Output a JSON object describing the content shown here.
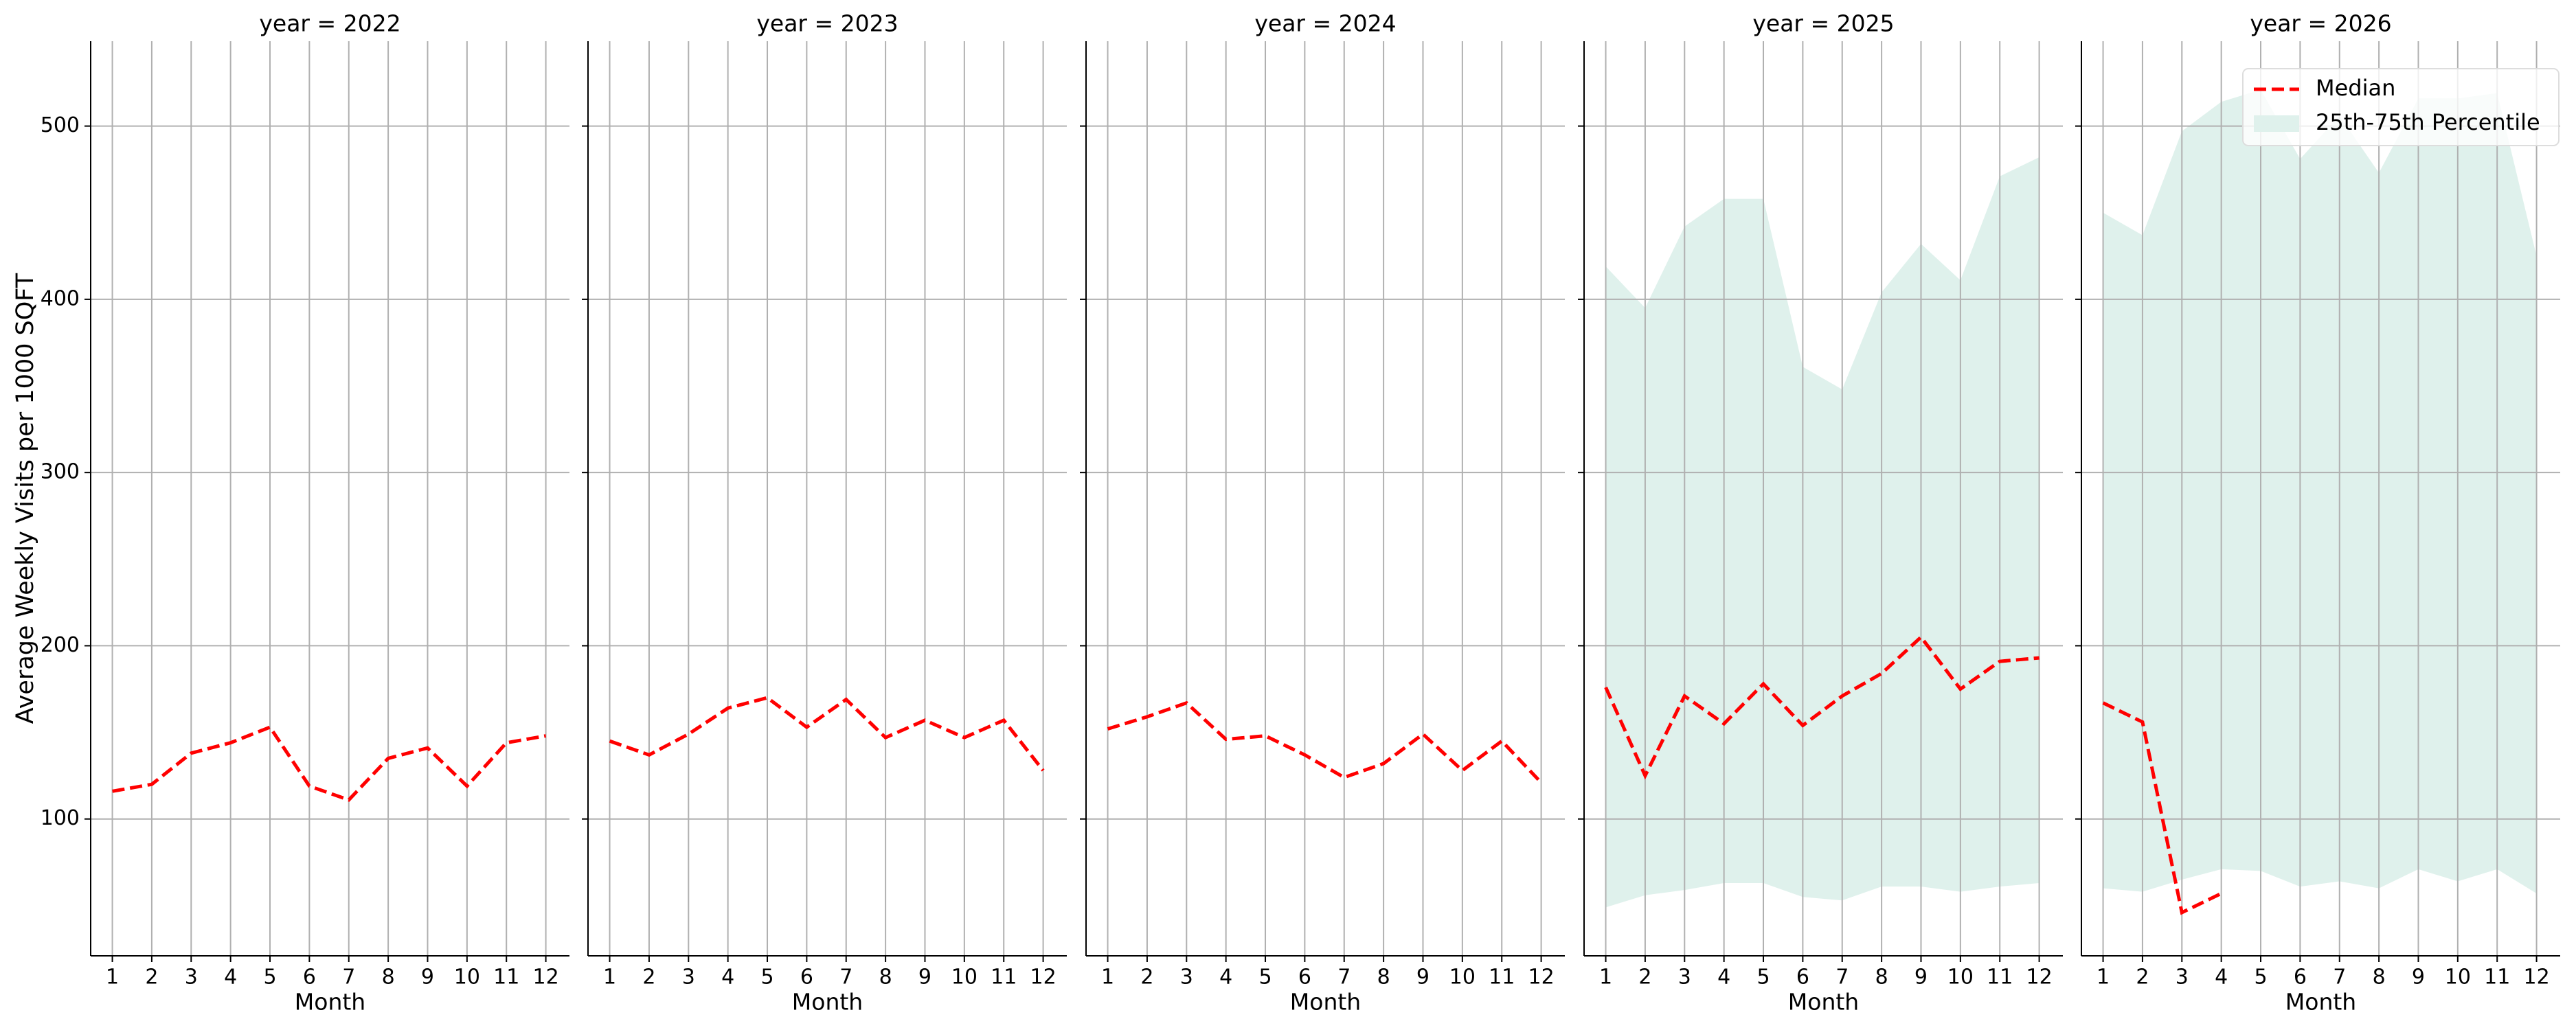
{
  "chart_data": {
    "type": "facet-line",
    "ylabel": "Average Weekly Visits per 1000 SQFT",
    "xlabel": "Month",
    "ylim": [
      21,
      549
    ],
    "yticks": [
      100,
      200,
      300,
      400,
      500
    ],
    "xlim": [
      0.45,
      12.6
    ],
    "grid": true,
    "legend": "upper right",
    "facets": [
      {
        "title": "year = 2022",
        "x": [
          1,
          2,
          3,
          4,
          5,
          6,
          7,
          8,
          9,
          10,
          11,
          12
        ],
        "series": [
          {
            "name": "Median",
            "color": "#ff0000",
            "values": [
              116,
              120,
              138,
              144,
              153,
              119,
              111,
              135,
              141,
              119,
              144,
              148
            ]
          }
        ]
      },
      {
        "title": "year = 2023",
        "x": [
          1,
          2,
          3,
          4,
          5,
          6,
          7,
          8,
          9,
          10,
          11,
          12
        ],
        "series": [
          {
            "name": "Median",
            "color": "#ff0000",
            "values": [
              145,
              137,
              149,
              164,
              170,
              153,
              169,
              147,
              157,
              147,
              157,
              128
            ]
          }
        ]
      },
      {
        "title": "year = 2024",
        "x": [
          1,
          2,
          3,
          4,
          5,
          6,
          7,
          8,
          9,
          10,
          11,
          12
        ],
        "series": [
          {
            "name": "Median",
            "color": "#ff0000",
            "values": [
              152,
              159,
              167,
              146,
              148,
              137,
              124,
              132,
              149,
              128,
              145,
              121
            ]
          }
        ]
      },
      {
        "title": "year = 2025",
        "x": [
          1,
          2,
          3,
          4,
          5,
          6,
          7,
          8,
          9,
          10,
          11,
          12
        ],
        "series": [
          {
            "name": "Median",
            "color": "#ff0000",
            "values": [
              176,
              125,
              171,
              155,
              178,
              154,
              171,
              184,
              205,
              175,
              191,
              193
            ]
          },
          {
            "name": "25th-75th Percentile",
            "color": "#dff1ec",
            "lower": [
              49,
              56,
              59,
              63,
              63,
              55,
              53,
              61,
              61,
              58,
              61,
              63
            ],
            "upper": [
              419,
              395,
              442,
              458,
              458,
              361,
              348,
              404,
              432,
              411,
              471,
              482
            ]
          }
        ]
      },
      {
        "title": "year = 2026",
        "x": [
          1,
          2,
          3,
          4,
          5,
          6,
          7,
          8,
          9,
          10,
          11,
          12
        ],
        "series": [
          {
            "name": "Median",
            "color": "#ff0000",
            "values": [
              167,
              156,
              46,
              57,
              null,
              null,
              null,
              null,
              null,
              null,
              null,
              null
            ]
          },
          {
            "name": "25th-75th Percentile",
            "color": "#dff1ec",
            "lower": [
              60,
              58,
              65,
              71,
              70,
              61,
              64,
              60,
              71,
              64,
              71,
              57
            ],
            "upper": [
              450,
              437,
              497,
              514,
              521,
              481,
              506,
              473,
              516,
              516,
              519,
              425
            ]
          }
        ]
      }
    ]
  }
}
